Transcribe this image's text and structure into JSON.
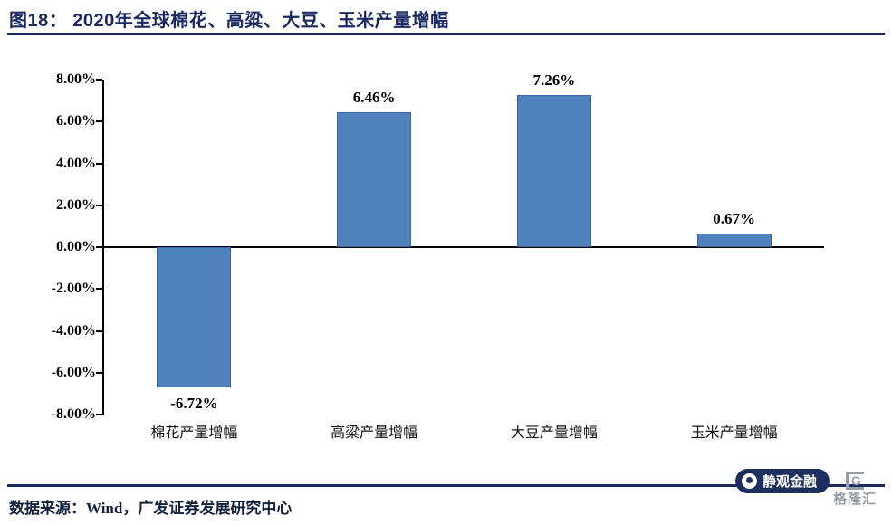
{
  "header": {
    "title": "图18：  2020年全球棉花、高粱、大豆、玉米产量增幅"
  },
  "chart_data": {
    "type": "bar",
    "title": "2020年全球棉花、高粱、大豆、玉米产量增幅",
    "categories": [
      "棉花产量增幅",
      "高粱产量增幅",
      "大豆产量增幅",
      "玉米产量增幅"
    ],
    "values": [
      -6.72,
      6.46,
      7.26,
      0.67
    ],
    "data_labels": [
      "-6.72%",
      "6.46%",
      "7.26%",
      "0.67%"
    ],
    "yticks": [
      "8.00%",
      "6.00%",
      "4.00%",
      "2.00%",
      "0.00%",
      "-2.00%",
      "-4.00%",
      "-6.00%",
      "-8.00%"
    ],
    "ylim": [
      -8,
      8
    ],
    "bar_color": "#4f81bd",
    "grid": "off",
    "legend": "none"
  },
  "footer": {
    "source": "数据来源：Wind，广发证券发展研究中心"
  },
  "watermark": {
    "badge_text": "静观金融",
    "gl_letter": "G",
    "gl_text": "格隆汇"
  }
}
